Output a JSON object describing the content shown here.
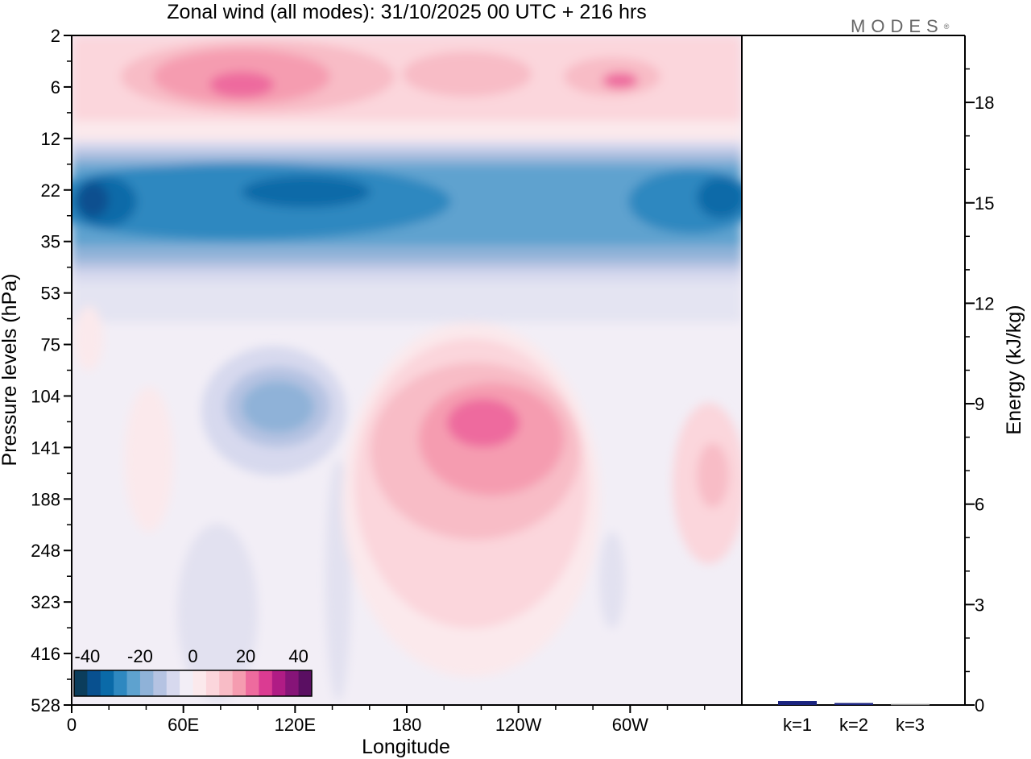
{
  "title": "Zonal wind (all modes):  31/10/2025  00 UTC  + 216 hrs",
  "logo": "MODES",
  "logo_mark": "®",
  "colors": {
    "neg": [
      "#0b3d5c",
      "#08508f",
      "#0a6aa8",
      "#2e88c0",
      "#5ea2cf",
      "#8fb2d8",
      "#b5c3e2",
      "#d7d9ee"
    ],
    "neutral": [
      "#f2eef6",
      "#fbe9ec"
    ],
    "pos": [
      "#fbd6dc",
      "#f8bcc6",
      "#f59cb0",
      "#ee6b9e",
      "#db3b92",
      "#b01c85",
      "#861478",
      "#5a0f62"
    ]
  },
  "chart_data": [
    {
      "type": "heatmap",
      "title": "Zonal wind (all modes):  31/10/2025  00 UTC  + 216 hrs",
      "xlabel": "Longitude",
      "ylabel": "Pressure levels (hPa)",
      "x_ticks": [
        "0",
        "60E",
        "120E",
        "180",
        "120W",
        "60W"
      ],
      "y_ticks": [
        "2",
        "6",
        "12",
        "22",
        "35",
        "53",
        "75",
        "104",
        "141",
        "188",
        "248",
        "323",
        "416",
        "528"
      ],
      "colorbar": {
        "ticks": [
          "-40",
          "-20",
          "0",
          "20",
          "40"
        ],
        "range": [
          -45,
          45
        ],
        "step": 5
      }
    },
    {
      "type": "bar",
      "ylabel": "Energy (kJ/kg)",
      "categories": [
        "k=1",
        "k=2",
        "k=3"
      ],
      "values": [
        0.12,
        0.06,
        0.03
      ],
      "ylim": [
        0,
        20
      ],
      "y_ticks": [
        "0",
        "3",
        "6",
        "9",
        "12",
        "15",
        "18"
      ],
      "bar_colors": [
        "#1a237e",
        "#1a237e",
        "#888888"
      ]
    }
  ]
}
